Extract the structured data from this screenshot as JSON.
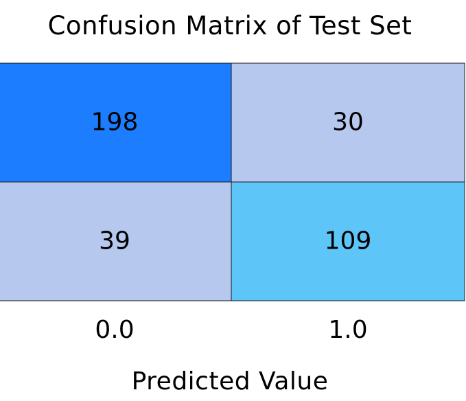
{
  "chart_data": {
    "type": "heatmap",
    "title": "Confusion Matrix of Test Set",
    "xlabel": "Predicted Value",
    "ylabel": "",
    "x_categories": [
      "0.0",
      "1.0"
    ],
    "y_categories": [
      "",
      ""
    ],
    "values": [
      [
        198,
        30
      ],
      [
        39,
        109
      ]
    ],
    "cell_colors": [
      [
        "#1c7eff",
        "#b6c8ed"
      ],
      [
        "#b6c8ed",
        "#5dc5f8"
      ]
    ],
    "cell_border_color": "#1a1a1a",
    "grid": false,
    "legend": "none"
  }
}
